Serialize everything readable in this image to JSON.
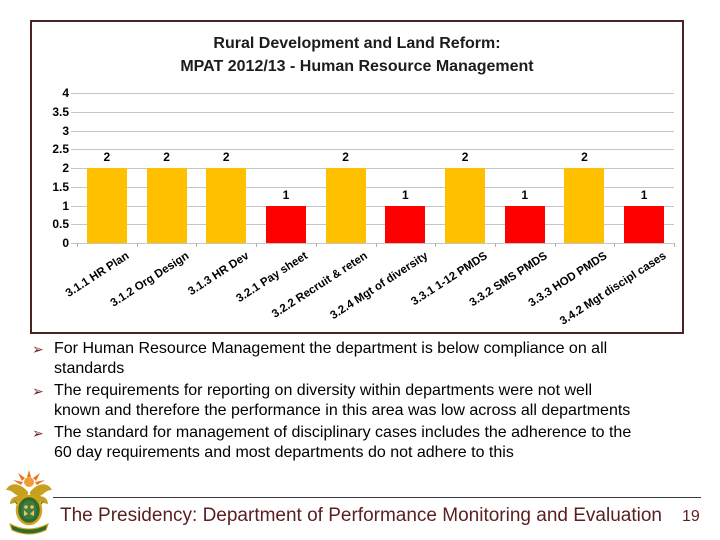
{
  "slide": {
    "title_lines": [
      "Rural Development and Land Reform:",
      "MPAT 2012/13 - Human Resource Management"
    ]
  },
  "chart_data": {
    "type": "bar",
    "title": "Rural Development and Land Reform: MPAT 2012/13 - Human Resource Management",
    "categories": [
      "3.1.1 HR Plan",
      "3.1.2 Org Design",
      "3.1.3 HR Dev",
      "3.2.1 Pay sheet",
      "3.2.2 Recruit & reten",
      "3.2.4 Mgt of diversity",
      "3.3.1 1-12 PMDS",
      "3.3.2 SMS PMDS",
      "3.3.3 HOD PMDS",
      "3.4.2 Mgt discipl cases"
    ],
    "values": [
      2,
      2,
      2,
      1,
      2,
      1,
      2,
      1,
      2,
      1
    ],
    "bar_colors": [
      "#FFC000",
      "#FFC000",
      "#FFC000",
      "#FF0000",
      "#FFC000",
      "#FF0000",
      "#FFC000",
      "#FF0000",
      "#FFC000",
      "#FF0000"
    ],
    "xlabel": "",
    "ylabel": "",
    "ylim": [
      0,
      4
    ],
    "ytick_step": 0.5,
    "grid": true,
    "legend_position": "none",
    "data_labels": true
  },
  "bullets": {
    "marker": "➢",
    "items": [
      "For Human Resource Management the department is below compliance on all\nstandards",
      "The requirements for reporting on diversity within departments were not well\nknown and therefore the performance in this area was low across all departments",
      "The standard for management of disciplinary cases includes the adherence to the\n60 day requirements and most departments do not adhere to this"
    ]
  },
  "footer": {
    "text": "The Presidency: Department of Performance Monitoring and Evaluation",
    "page": "19",
    "logo_icon": "south-african-coat-of-arms"
  },
  "colors": {
    "bar_compliant": "#FFC000",
    "bar_noncompliant": "#FF0000",
    "chart_border": "#4A2323",
    "gridline": "#C6C6C6",
    "footer_text": "#5A1F1F",
    "bullet_marker": "#6B2727"
  }
}
